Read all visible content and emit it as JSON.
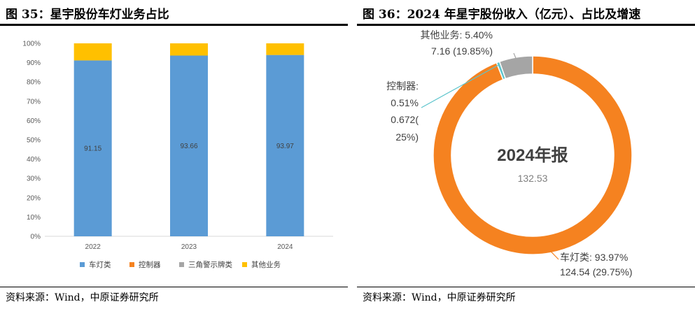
{
  "left": {
    "title": "图 35：星宇股份车灯业务占比",
    "source": "资料来源：Wind，中原证券研究所"
  },
  "right": {
    "title": "图 36：2024 年星宇股份收入（亿元）、占比及增速",
    "source": "资料来源：Wind，中原证券研究所"
  },
  "colors": {
    "blue": "#5B9BD5",
    "orange": "#F58220",
    "gray": "#A5A5A5",
    "yellow": "#FFC000"
  },
  "chart_data": [
    {
      "type": "bar",
      "stacked": true,
      "categories": [
        "2022",
        "2023",
        "2024"
      ],
      "ylim": [
        0,
        100
      ],
      "yticks": [
        "0%",
        "10%",
        "20%",
        "30%",
        "40%",
        "50%",
        "60%",
        "70%",
        "80%",
        "90%",
        "100%"
      ],
      "series": [
        {
          "name": "车灯类",
          "values": [
            91.15,
            93.66,
            93.97
          ],
          "labels": [
            "91.15",
            "93.66",
            "93.97"
          ]
        },
        {
          "name": "控制器",
          "values": [
            0,
            0,
            0
          ]
        },
        {
          "name": "三角警示牌类",
          "values": [
            0,
            0,
            0
          ]
        },
        {
          "name": "其他业务",
          "values": [
            8.85,
            6.34,
            6.03
          ]
        }
      ],
      "legend_position": "bottom"
    },
    {
      "type": "pie",
      "donut": true,
      "center_title": "2024年报",
      "center_value": "132.53",
      "slices": [
        {
          "name": "车灯类",
          "share": 93.97,
          "revenue": 124.54,
          "growth": 29.75,
          "label_lines": [
            "车灯类: 93.97%",
            "124.54 (29.75%)"
          ]
        },
        {
          "name": "控制器",
          "share": 0.51,
          "revenue": 0.672,
          "growth": 25,
          "label_lines": [
            "控制器:",
            "0.51%",
            "0.672(",
            "25%)"
          ]
        },
        {
          "name": "其他业务",
          "share": 5.4,
          "revenue": 7.16,
          "growth": 19.85,
          "label_lines": [
            "其他业务: 5.40%",
            "7.16 (19.85%)"
          ]
        }
      ]
    }
  ]
}
